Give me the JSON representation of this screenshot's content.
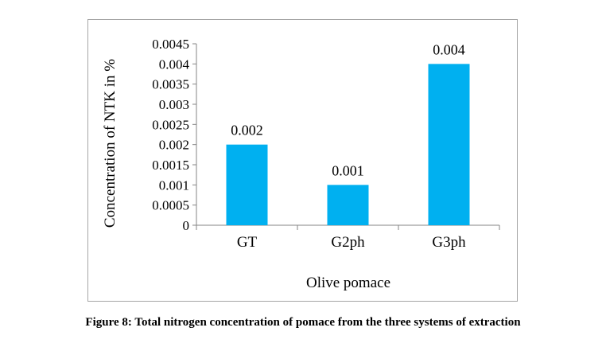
{
  "chart_data": {
    "type": "bar",
    "categories": [
      "GT",
      "G2ph",
      "G3ph"
    ],
    "values": [
      0.002,
      0.001,
      0.004
    ],
    "data_labels": [
      "0.002",
      "0.001",
      "0.004"
    ],
    "xlabel": "Olive pomace",
    "ylabel": "Concentration of NTK in %",
    "ylim": [
      0,
      0.0045
    ],
    "yticks": [
      "0",
      "0.0005",
      "0.001",
      "0.0015",
      "0.002",
      "0.0025",
      "0.003",
      "0.0035",
      "0.004",
      "0.0045"
    ],
    "bar_color": "#00b0f0",
    "grid": false,
    "legend": "none"
  },
  "caption": "Figure 8: Total nitrogen concentration of pomace from the three systems of extraction"
}
